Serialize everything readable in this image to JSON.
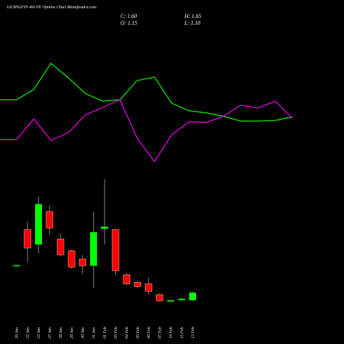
{
  "chart_data": [
    {
      "type": "candlestick",
      "title": "LICHSGFIN 460 PE Options Chart Munafasutra.com",
      "stats": [
        "C: 1.60",
        "H: 1.65",
        "O: 1.15",
        "L: 1.10"
      ],
      "categories": [
        "20 Jan",
        "22 Jan",
        "23 Jan",
        "27 Jan",
        "28 Jan",
        "29 Jan",
        "30 Jan",
        "31 Jan",
        "01 Feb",
        "03 Feb",
        "04 Feb",
        "05 Feb",
        "06 Feb",
        "07 Feb",
        "10 Feb",
        "11 Feb",
        "12 Feb"
      ],
      "open": [
        3.24,
        5.37,
        4.47,
        6.44,
        4.8,
        4.1,
        3.61,
        3.2,
        5.41,
        5.37,
        2.67,
        2.22,
        2.13,
        1.48,
        1.07,
        1.15,
        1.15
      ],
      "close": [
        3.24,
        4.27,
        6.89,
        5.46,
        3.86,
        3.12,
        3.2,
        5.21,
        5.54,
        2.91,
        2.13,
        1.97,
        1.68,
        1.11,
        1.15,
        1.23,
        1.6
      ],
      "high": [
        3.24,
        5.82,
        7.34,
        6.81,
        5.13,
        4.18,
        3.86,
        6.44,
        8.37,
        5.37,
        2.79,
        2.3,
        2.5,
        1.56,
        1.15,
        1.27,
        1.65
      ],
      "low": [
        3.24,
        3.41,
        3.94,
        5.05,
        3.77,
        3.04,
        2.71,
        1.89,
        4.47,
        2.67,
        2.05,
        1.89,
        1.48,
        1.07,
        1.07,
        1.15,
        1.1
      ],
      "up_color": "#00ff00",
      "down_color": "#ff0000",
      "ylim": [
        1,
        8.8
      ]
    },
    {
      "type": "line",
      "series": [
        {
          "color": "#00ff00",
          "values": [
            52.5,
            60,
            79,
            68.5,
            57,
            51.5,
            52.5,
            66.5,
            69,
            50,
            44.5,
            43,
            40.5,
            37,
            37,
            37.5,
            40
          ]
        },
        {
          "color": "#ff00ff",
          "values": [
            23.5,
            38.5,
            23,
            28.5,
            41.5,
            47,
            52.5,
            24.5,
            7.5,
            27,
            36.5,
            36,
            40.5,
            48.5,
            46.5,
            51.5,
            39
          ]
        }
      ],
      "ylim": [
        0,
        100
      ]
    }
  ]
}
